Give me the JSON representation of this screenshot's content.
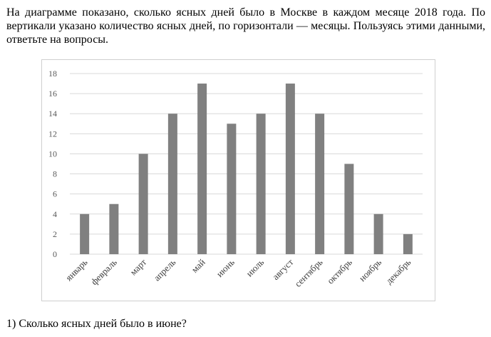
{
  "intro_text": "На диаграмме показано, сколько ясных дней было в Москве в каждом месяце 2018 года. По вертикали указано количество ясных дней, по горизонтали — месяцы. Пользуясь этими данными, ответьте на вопросы.",
  "question_1": "1) Сколько ясных дней было в июне?",
  "chart_data": {
    "type": "bar",
    "categories": [
      "январь",
      "февраль",
      "март",
      "апрель",
      "май",
      "июнь",
      "июль",
      "август",
      "сентябрь",
      "октябрь",
      "ноябрь",
      "декабрь"
    ],
    "values": [
      4,
      5,
      10,
      14,
      17,
      13,
      14,
      17,
      14,
      9,
      4,
      2
    ],
    "ylim": [
      0,
      18
    ],
    "yticks": [
      0,
      2,
      4,
      6,
      8,
      10,
      12,
      14,
      16,
      18
    ],
    "grid": true,
    "bar_color": "#808080",
    "grid_color": "#d9d9d9",
    "title": "",
    "xlabel": "",
    "ylabel": ""
  }
}
